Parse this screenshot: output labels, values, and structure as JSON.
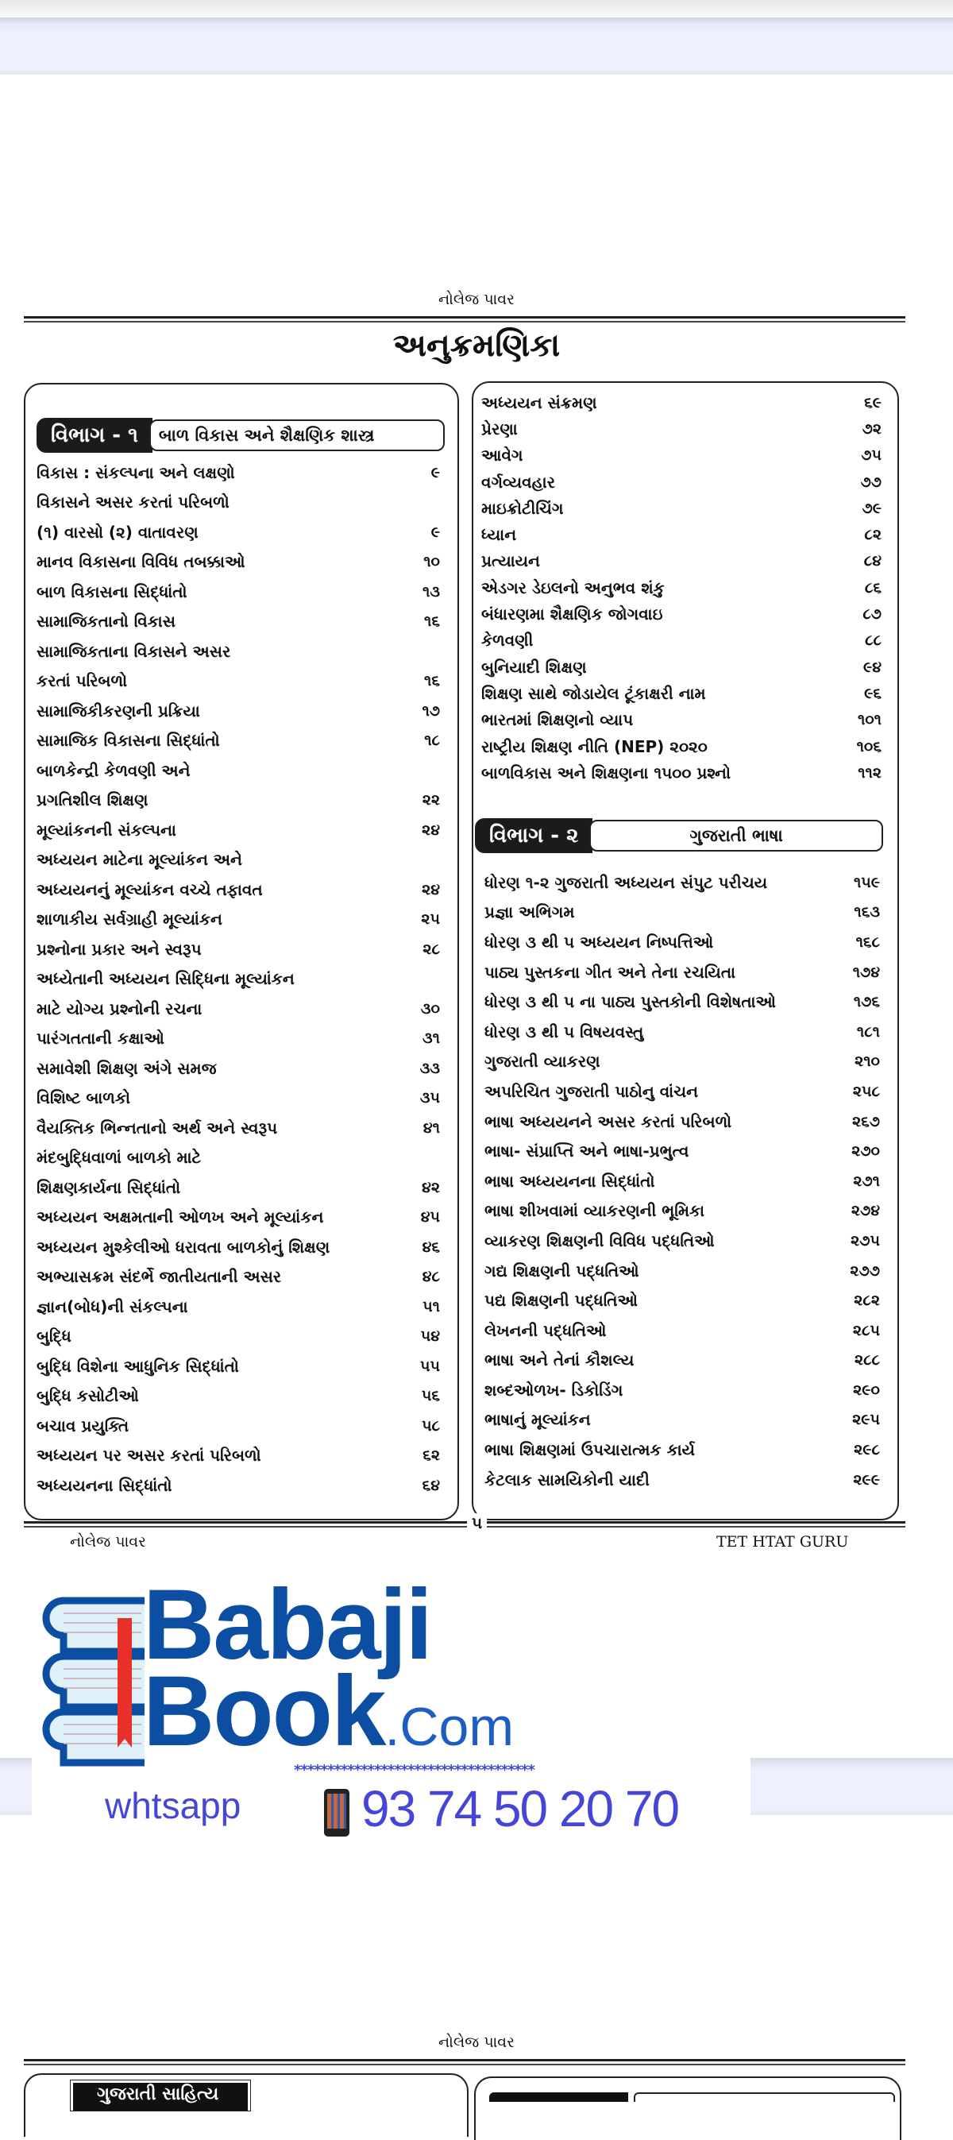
{
  "running_header": "નોલેજ પાવર",
  "title": "અનુક્રમણિકા",
  "section1": {
    "label": "વિભાગ - ૧",
    "name": "બાળ વિકાસ અને શૈક્ષણિક શાસ્ત્ર",
    "entries": [
      {
        "t": "વિકાસ : સંકલ્પના અને લક્ષણો",
        "p": "૯"
      },
      {
        "t": "વિકાસને અસર કરતાં પરિબળો",
        "p": ""
      },
      {
        "t": "(૧) વારસો (૨) વાતાવરણ",
        "p": "૯"
      },
      {
        "t": "માનવ વિકાસના વિવિધ તબક્કાઓ",
        "p": "૧૦"
      },
      {
        "t": "બાળ વિકાસના સિદ્ધાંતો",
        "p": "૧૩"
      },
      {
        "t": "સામાજિકતાનો વિકાસ",
        "p": "૧૬"
      },
      {
        "t": "સામાજિકતાના વિકાસને અસર",
        "p": ""
      },
      {
        "t": "કરતાં પરિબળો",
        "p": "૧૬"
      },
      {
        "t": "સામાજિકીકરણની પ્રક્રિયા",
        "p": "૧૭"
      },
      {
        "t": "સામાજિક વિકાસના સિદ્ધાંતો",
        "p": "૧૮"
      },
      {
        "t": "બાળકેન્દ્રી કેળવણી અને",
        "p": ""
      },
      {
        "t": "પ્રગતિશીલ શિક્ષણ",
        "p": "૨૨"
      },
      {
        "t": "મૂલ્યાંકનની સંકલ્પના",
        "p": "૨૪"
      },
      {
        "t": "અધ્યયન માટેના મૂલ્યાંકન અને",
        "p": ""
      },
      {
        "t": "અધ્યયનનું મૂલ્યાંકન વચ્ચે તફાવત",
        "p": "૨૪"
      },
      {
        "t": "શાળાકીય સર્વગ્રાહી મૂલ્યાંકન",
        "p": "૨૫"
      },
      {
        "t": "પ્રશ્નોના પ્રકાર અને સ્વરૂપ",
        "p": "૨૮"
      },
      {
        "t": "અધ્યેતાની અધ્યયન સિદ્ધિના મૂલ્યાંકન",
        "p": ""
      },
      {
        "t": " માટે યોગ્ય પ્રશ્નોની રચના",
        "p": "૩૦"
      },
      {
        "t": "પારંગતતાની કક્ષાઓ",
        "p": "૩૧"
      },
      {
        "t": "સમાવેશી શિક્ષણ અંગે સમજ",
        "p": "૩૩"
      },
      {
        "t": "વિશિષ્ટ બાળકો",
        "p": "૩૫"
      },
      {
        "t": "વૈયક્તિક ભિન્નતાનો અર્થ અને સ્વરૂપ",
        "p": "૪૧"
      },
      {
        "t": "મંદબુદ્ધિવાળાં બાળકો માટે",
        "p": ""
      },
      {
        "t": "શિક્ષણકાર્યના સિદ્ધાંતો",
        "p": "૪૨"
      },
      {
        "t": "અધ્યયન અક્ષમતાની ઓળખ અને મૂલ્યાંકન",
        "p": "૪૫"
      },
      {
        "t": "અધ્યયન મુશ્કેલીઓ ધરાવતા બાળકોનું  શિક્ષણ",
        "p": "૪૬"
      },
      {
        "t": "અભ્યાસક્રમ સંદર્ભે જાતીયતાની અસર",
        "p": "૪૮"
      },
      {
        "t": "જ્ઞાન(બોધ)ની સંકલ્પના",
        "p": "૫૧"
      },
      {
        "t": "બુદ્ધિ",
        "p": "૫૪"
      },
      {
        "t": "બુદ્ધિ વિશેના આધુનિક  સિદ્ધાંતો",
        "p": "૫૫"
      },
      {
        "t": "બુદ્ધિ કસોટીઓ",
        "p": "૫૬"
      },
      {
        "t": "બચાવ પ્રયુક્તિ",
        "p": "૫૮"
      },
      {
        "t": "અધ્યયન પર અસર કરતાં પરિબળો",
        "p": "૬૨"
      },
      {
        "t": "અધ્યયનના સિદ્ધાંતો",
        "p": "૬૪"
      }
    ],
    "continued": [
      {
        "t": "અધ્યયન સંક્રમણ",
        "p": "૬૯"
      },
      {
        "t": "પ્રેરણા",
        "p": "૭૨"
      },
      {
        "t": "આવેગ",
        "p": "૭૫"
      },
      {
        "t": "વર્ગવ્યવહાર",
        "p": "૭૭"
      },
      {
        "t": "માઇક્રોટીચિંગ",
        "p": "૭૯"
      },
      {
        "t": "ધ્યાન",
        "p": "૮૨"
      },
      {
        "t": "પ્રત્યાયન",
        "p": "૮૪"
      },
      {
        "t": "એડગર ડેઇલનો અનુભવ શંકુ",
        "p": "૮૬"
      },
      {
        "t": "બંધારણમા શૈક્ષણિક જોગવાઇ",
        "p": "૮૭"
      },
      {
        "t": "કેળવણી",
        "p": "૮૮"
      },
      {
        "t": "બુનિયાદી શિક્ષણ",
        "p": "૯૪"
      },
      {
        "t": "શિક્ષણ સાથે  જોડાયેલ ટૂંકાક્ષરી નામ",
        "p": "૯૬"
      },
      {
        "t": "ભારતમાં શિક્ષણનો વ્યાપ",
        "p": "૧૦૧"
      },
      {
        "t": "રાષ્ટ્રીય શિક્ષણ નીતિ (NEP) ૨૦૨૦",
        "p": "૧૦૬"
      },
      {
        "t": "બાળવિકાસ અને શિક્ષણના ૧૫૦૦ પ્રશ્નો",
        "p": "૧૧૨"
      }
    ]
  },
  "section2": {
    "label": "વિભાગ - ૨",
    "name": "ગુજરાતી ભાષા",
    "entries": [
      {
        "t": "ધોરણ ૧-૨  ગુજરાતી અધ્યયન સંપુટ  પરીચય",
        "p": "૧૫૯"
      },
      {
        "t": "પ્રજ્ઞા અભિગમ",
        "p": "૧૬૩"
      },
      {
        "t": "ધોરણ ૩ થી ૫  અધ્યયન નિષ્પત્તિઓ",
        "p": "૧૬૮"
      },
      {
        "t": "પાઠ્ય પુસ્તકના ગીત અને તેના રચયિતા",
        "p": "૧૭૪"
      },
      {
        "t": "ધોરણ ૩ થી ૫ ના પાઠ્ય પુસ્તકોની વિશેષતાઓ",
        "p": "૧૭૬"
      },
      {
        "t": "ધોરણ ૩ થી ૫  વિષયવસ્તુ",
        "p": "૧૮૧"
      },
      {
        "t": "ગુજરાતી વ્યાકરણ",
        "p": "૨૧૦"
      },
      {
        "t": "અપરિચિત  ગુજરાતી પાઠોનુ  વાંચન",
        "p": "૨૫૮"
      },
      {
        "t": "ભાષા અધ્યયનને અસર કરતાં પરિબળો",
        "p": "૨૬૭"
      },
      {
        "t": "ભાષા- સંપ્રાપ્તિ અને ભાષા-પ્રભુત્વ",
        "p": "૨૭૦"
      },
      {
        "t": "ભાષા અધ્યયનના સિદ્ધાંતો",
        "p": "૨૭૧"
      },
      {
        "t": "ભાષા શીખવામાં વ્યાકરણની ભૂમિકા",
        "p": "૨૭૪"
      },
      {
        "t": "વ્યાકરણ શિક્ષણની વિવિધ પદ્ધતિઓ",
        "p": "૨૭૫"
      },
      {
        "t": "ગદ્ય શિક્ષણની પદ્ધતિઓ",
        "p": "૨૭૭"
      },
      {
        "t": "પદ્ય શિક્ષણની પદ્ધતિઓ",
        "p": "૨૮૨"
      },
      {
        "t": "લેખનની પદ્ધતિઓ",
        "p": "૨૮૫"
      },
      {
        "t": "ભાષા અને તેનાં કૌશલ્ય",
        "p": "૨૮૮"
      },
      {
        "t": "શબ્દઓળખ- ડિકોડિંગ",
        "p": "૨૯૦"
      },
      {
        "t": "ભાષાનું મૂલ્યાંકન",
        "p": "૨૯૫"
      },
      {
        "t": "ભાષા શિક્ષણમાં ઉપચારાત્મક કાર્ય",
        "p": "૨૯૮"
      },
      {
        "t": "કેટલાક સામયિકોની યાદી",
        "p": "૨૯૯"
      }
    ]
  },
  "page_number": "૫",
  "footer": {
    "left": "નોલેજ પાવર",
    "right": "TET HTAT GURU"
  },
  "watermark": {
    "brand_line1": "Babaji",
    "brand_line2": "Book",
    "brand_suffix": ".Com",
    "stars": "************************************",
    "whatsapp_label": "whtsapp",
    "phone": "93 74 50 20 70",
    "icons": [
      "book-stack-icon",
      "mobile-phone-icon"
    ],
    "colors": {
      "brand": "#0b4ea2",
      "contact": "#4545d8",
      "bookmark": "#e8302a"
    }
  },
  "next_page": {
    "running_header": "નોલેજ પાવર",
    "section_label": "ગુજરાતી સાહિત્ય"
  }
}
